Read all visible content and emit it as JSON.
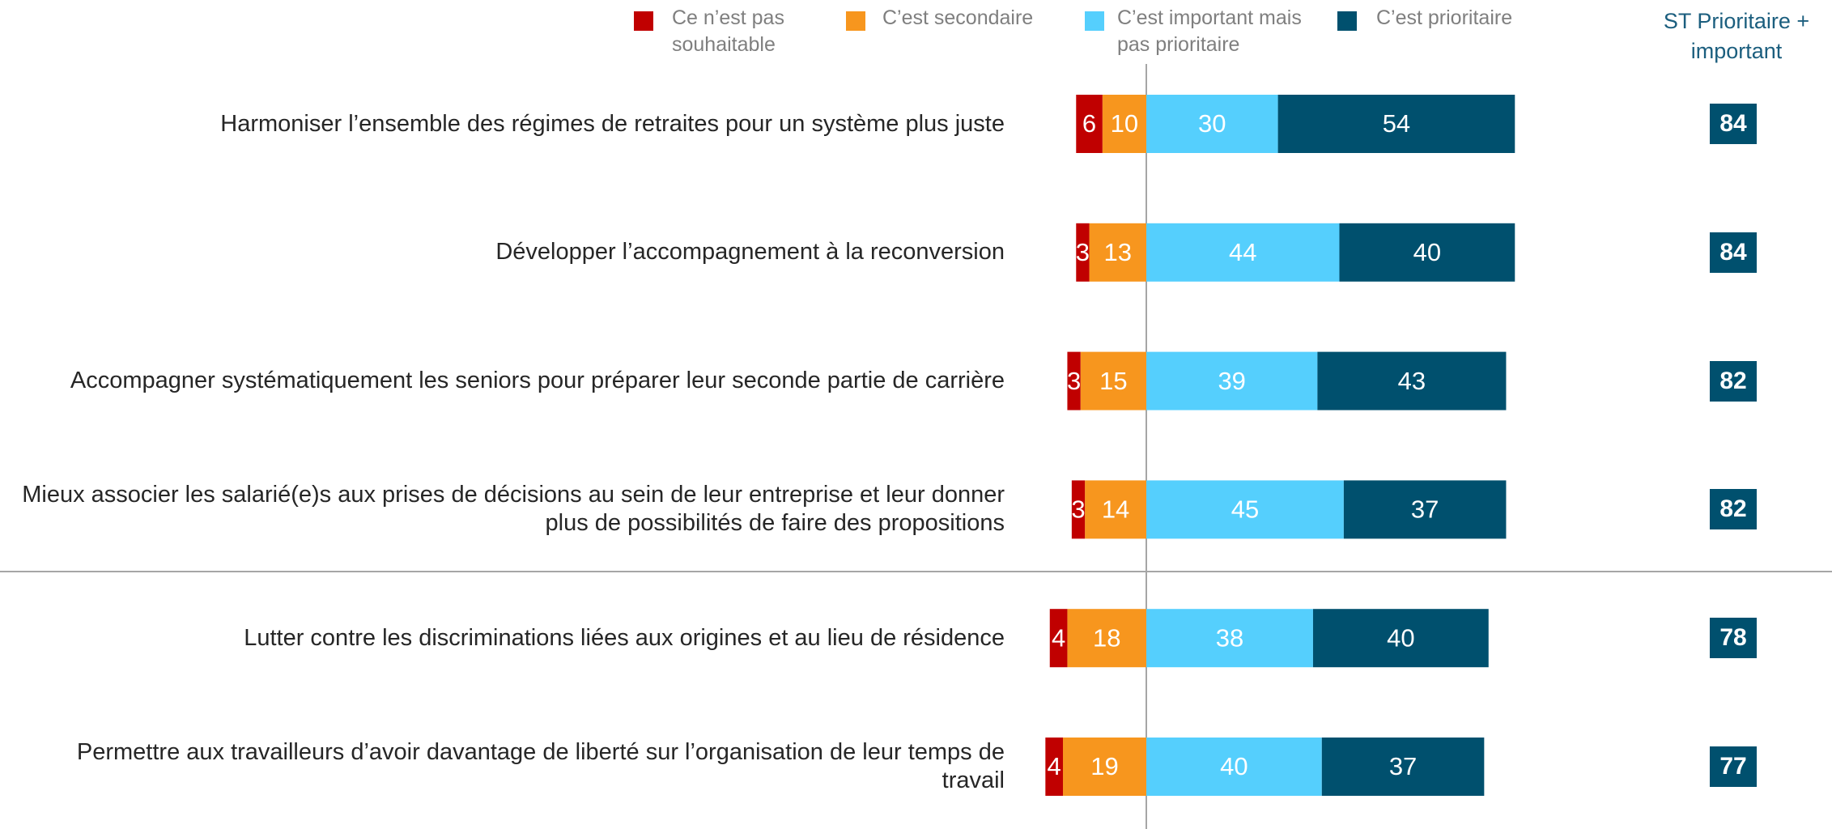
{
  "chart_data": {
    "type": "bar",
    "categories": [
      "Harmoniser l’ensemble des régimes de retraites pour un système plus juste",
      "Développer l’accompagnement à la reconversion",
      "Accompagner systématiquement les seniors pour préparer leur seconde partie de carrière",
      "Mieux associer les salarié(e)s aux prises de décisions au sein de leur entreprise et leur donner plus de possibilités de faire des propositions",
      "Lutter contre les discriminations liées aux origines et au lieu de résidence",
      "Permettre aux travailleurs d’avoir davantage de liberté sur l’organisation de leur temps de travail"
    ],
    "series": [
      {
        "name": "Ce n’est pas souhaitable",
        "color": "#c00000",
        "values": [
          6,
          3,
          3,
          3,
          4,
          4
        ]
      },
      {
        "name": "C’est secondaire",
        "color": "#f7961e",
        "values": [
          10,
          13,
          15,
          14,
          18,
          19
        ]
      },
      {
        "name": "C’est important mais pas prioritaire",
        "color": "#55cffd",
        "values": [
          30,
          44,
          39,
          45,
          38,
          40
        ]
      },
      {
        "name": "C’est prioritaire",
        "color": "#00506e",
        "values": [
          54,
          40,
          43,
          37,
          40,
          37
        ]
      }
    ],
    "totals": {
      "name": "ST Prioritaire + important",
      "values": [
        84,
        84,
        82,
        82,
        78,
        77
      ]
    }
  }
}
